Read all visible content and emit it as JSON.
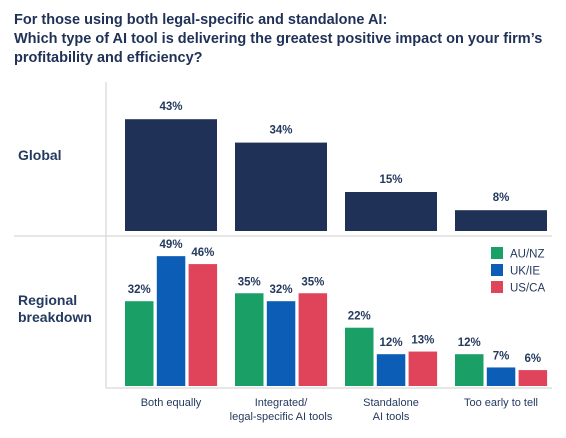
{
  "title": {
    "lines": [
      "For those using both legal-specific and standalone AI:",
      "Which type of AI tool is delivering the greatest positive impact on your firm’s",
      "profitability and efficiency?"
    ]
  },
  "colors": {
    "global": "#1f3157",
    "AU/NZ": "#1aa066",
    "UK/IE": "#0b5db6",
    "US/CA": "#e0445a",
    "divider": "#cfcfcf",
    "text": "#243a5e"
  },
  "chart_data": {
    "type": "bar",
    "categories": [
      [
        "Both equally"
      ],
      [
        "Integrated/",
        "legal-specific AI tools"
      ],
      [
        "Standalone",
        "AI tools"
      ],
      [
        "Too early to tell"
      ]
    ],
    "global": {
      "row_label": [
        "Global"
      ],
      "values": [
        43,
        34,
        15,
        8
      ],
      "value_labels": [
        "43%",
        "34%",
        "15%",
        "8%"
      ]
    },
    "regional": {
      "row_label": [
        "Regional",
        "breakdown"
      ],
      "series": [
        {
          "name": "AU/NZ",
          "values": [
            32,
            35,
            22,
            12
          ],
          "value_labels": [
            "32%",
            "35%",
            "22%",
            "12%"
          ]
        },
        {
          "name": "UK/IE",
          "values": [
            49,
            32,
            12,
            7
          ],
          "value_labels": [
            "49%",
            "32%",
            "12%",
            "7%"
          ]
        },
        {
          "name": "US/CA",
          "values": [
            46,
            35,
            13,
            6
          ],
          "value_labels": [
            "46%",
            "35%",
            "13%",
            "6%"
          ]
        }
      ]
    },
    "legend_position": "top-right",
    "grid": false
  }
}
